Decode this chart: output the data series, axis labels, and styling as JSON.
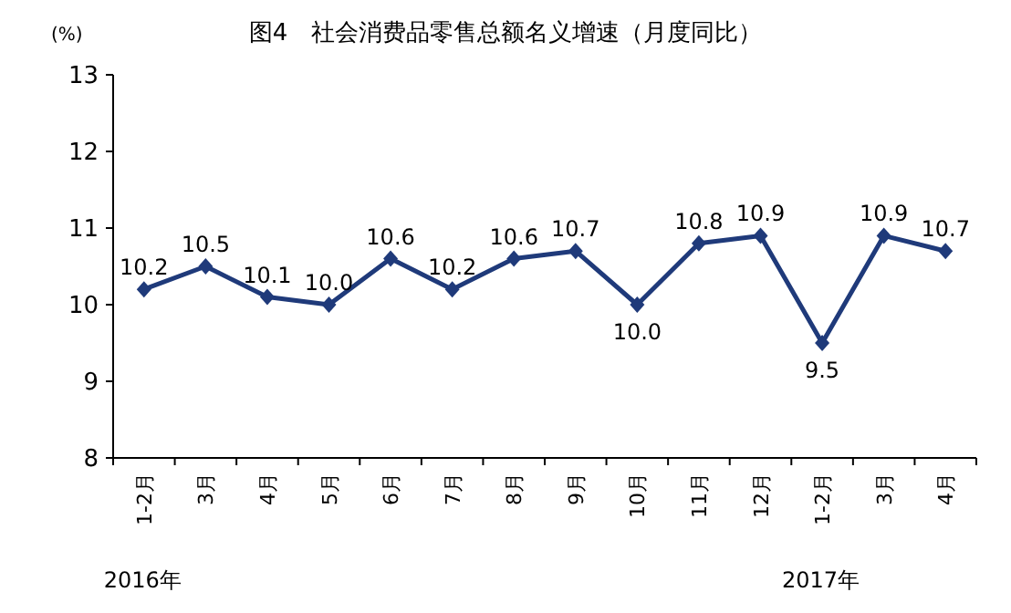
{
  "chart_data": {
    "type": "line",
    "title": "图4　社会消费品零售总额名义增速（月度同比）",
    "ylabel": "(%)",
    "categories": [
      "1-2月",
      "3月",
      "4月",
      "5月",
      "6月",
      "7月",
      "8月",
      "9月",
      "10月",
      "11月",
      "12月",
      "1-2月",
      "3月",
      "4月"
    ],
    "series": [
      {
        "color": "#1f3a7a",
        "values": [
          10.2,
          10.5,
          10.1,
          10.0,
          10.6,
          10.2,
          10.6,
          10.7,
          10.0,
          10.8,
          10.9,
          9.5,
          10.9,
          10.7
        ]
      }
    ],
    "value_labels": [
      "10.2",
      "10.5",
      "10.1",
      "10.0",
      "10.6",
      "10.2",
      "10.6",
      "10.7",
      "10.0",
      "10.8",
      "10.9",
      "9.5",
      "10.9",
      "10.7"
    ],
    "ylim": [
      8,
      13
    ],
    "yticks": [
      8,
      9,
      10,
      11,
      12,
      13
    ],
    "marker": "diamond",
    "grid": false,
    "annotations": [
      "2016年",
      "2017年"
    ]
  }
}
